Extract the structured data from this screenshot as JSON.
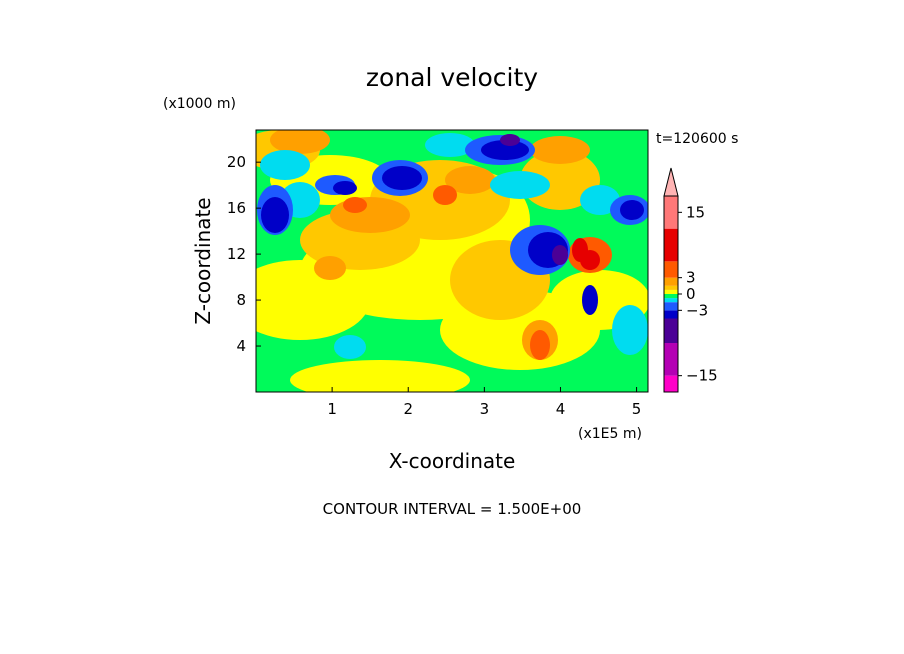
{
  "chart_data": {
    "type": "heatmap",
    "title": "zonal velocity",
    "xlabel": "X-coordinate",
    "ylabel": "Z-coordinate",
    "x_unit_label": "(x1E5 m)",
    "y_unit_label": "(x1000 m)",
    "time_label": "t=120600 s",
    "footer": "CONTOUR INTERVAL = 1.500E+00",
    "xlim": [
      0,
      5.15
    ],
    "ylim": [
      0,
      22.8
    ],
    "x_ticks": [
      1,
      2,
      3,
      4,
      5
    ],
    "x_tick_labels": [
      "1",
      "2",
      "3",
      "4",
      "5"
    ],
    "y_ticks": [
      4,
      8,
      12,
      16,
      20
    ],
    "y_tick_labels": [
      "4",
      "8",
      "12",
      "16",
      "20"
    ],
    "contour_interval": 1.5,
    "colorbar": {
      "levels": [
        -18,
        -16.5,
        -15,
        -13.5,
        -12,
        -10.5,
        -9,
        -7.5,
        -6,
        -4.5,
        -3,
        -1.5,
        0,
        1.5,
        3,
        4.5,
        6,
        7.5,
        9,
        10.5,
        12,
        13.5,
        15,
        16.5,
        18
      ],
      "tick_values": [
        15,
        3,
        0,
        -3,
        -15
      ],
      "tick_labels": [
        "15",
        "3",
        "0",
        "−3",
        "−15"
      ],
      "bands": [
        {
          "lo": -18,
          "hi": -15,
          "color": "#ff00c8"
        },
        {
          "lo": -15,
          "hi": -9,
          "color": "#b400b4"
        },
        {
          "lo": -9,
          "hi": -4.5,
          "color": "#4b0096"
        },
        {
          "lo": -4.5,
          "hi": -3,
          "color": "#0000c8"
        },
        {
          "lo": -3,
          "hi": -1.5,
          "color": "#1e5aff"
        },
        {
          "lo": -1.5,
          "hi": -0.75,
          "color": "#00dcf0"
        },
        {
          "lo": -0.75,
          "hi": 0,
          "color": "#00fa5a"
        },
        {
          "lo": 0,
          "hi": 0.75,
          "color": "#ffff00"
        },
        {
          "lo": 0.75,
          "hi": 1.5,
          "color": "#ffc800"
        },
        {
          "lo": 1.5,
          "hi": 3,
          "color": "#ffa000"
        },
        {
          "lo": 3,
          "hi": 6,
          "color": "#ff5a00"
        },
        {
          "lo": 6,
          "hi": 12,
          "color": "#e60000"
        },
        {
          "lo": 12,
          "hi": 18,
          "color": "#ff7878"
        }
      ],
      "top_arrow_color": "#ffb4b4"
    },
    "field_palette": [
      "#00fa5a",
      "#ffff00",
      "#ffc800",
      "#ffa000",
      "#ff5a00",
      "#e60000",
      "#00dcf0",
      "#1e5aff",
      "#0000c8",
      "#4b0096"
    ]
  }
}
